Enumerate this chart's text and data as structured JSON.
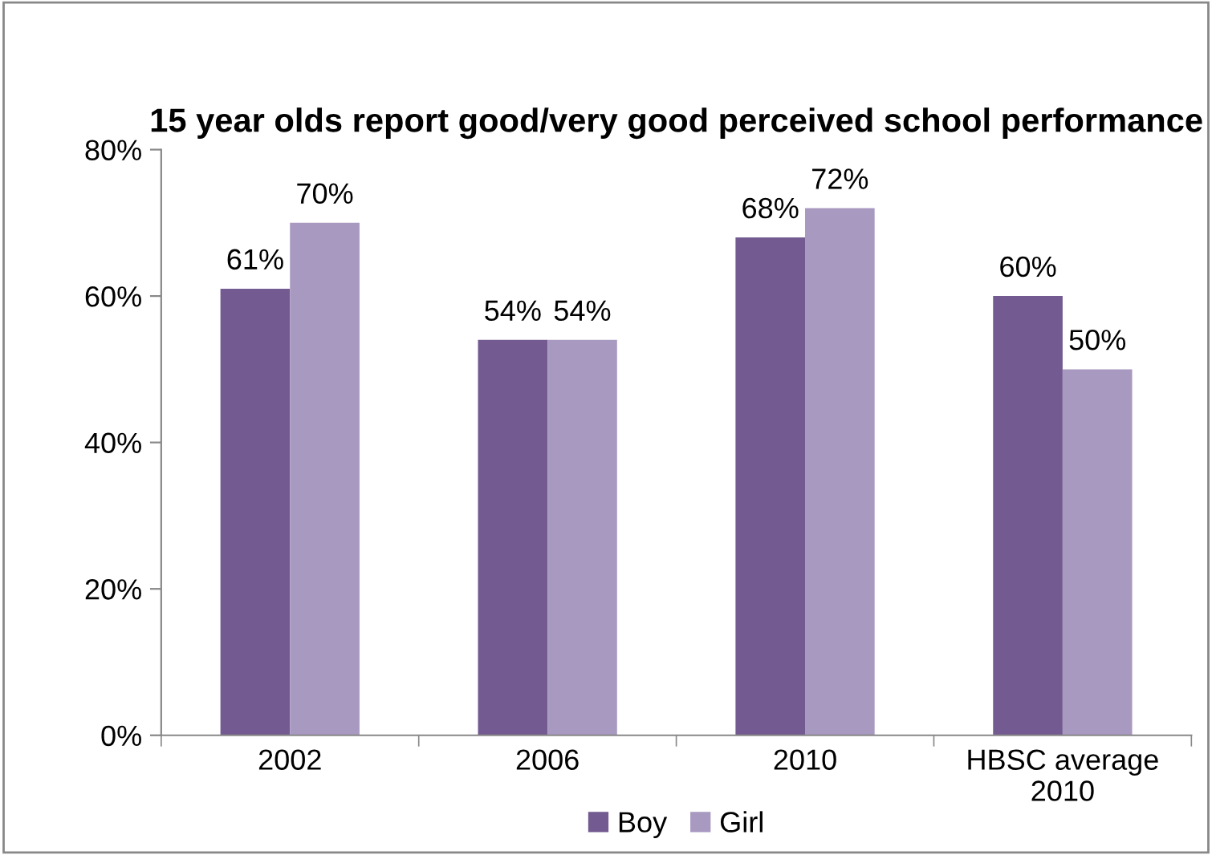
{
  "chart_data": {
    "type": "bar",
    "title": "15 year olds report good/very good perceived school performance",
    "categories": [
      "2002",
      "2006",
      "2010",
      "HBSC average\n2010"
    ],
    "series": [
      {
        "name": "Boy",
        "color": "#735a90",
        "values": [
          61,
          54,
          68,
          60
        ],
        "value_labels": [
          "61%",
          "54%",
          "68%",
          "60%"
        ]
      },
      {
        "name": "Girl",
        "color": "#a899c1",
        "values": [
          70,
          54,
          72,
          50
        ],
        "value_labels": [
          "70%",
          "54%",
          "72%",
          "50%"
        ]
      }
    ],
    "ylim": [
      0,
      80
    ],
    "yticks": [
      {
        "value": 0,
        "label": "0%"
      },
      {
        "value": 20,
        "label": "20%"
      },
      {
        "value": 40,
        "label": "40%"
      },
      {
        "value": 60,
        "label": "60%"
      },
      {
        "value": 80,
        "label": "80%"
      }
    ],
    "grid": false,
    "legend": "bottom"
  }
}
